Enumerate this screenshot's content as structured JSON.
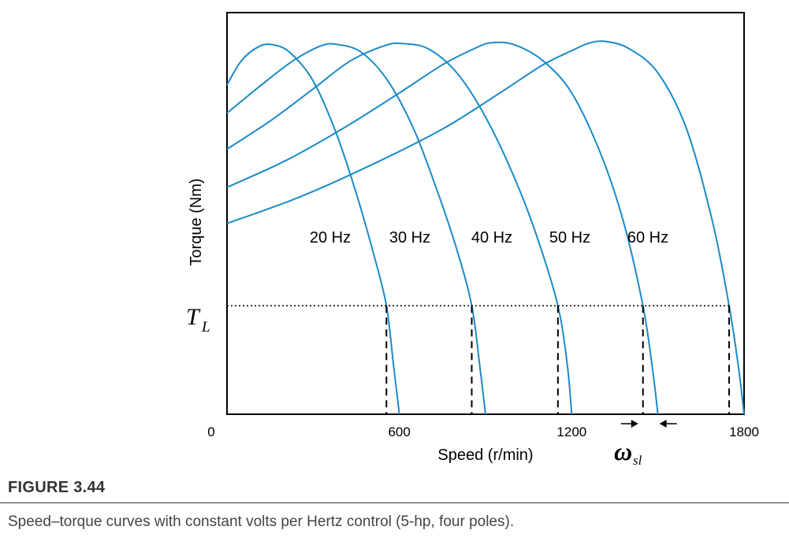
{
  "chart_data": {
    "type": "line",
    "title": "",
    "xlabel": "Speed (r/min)",
    "ylabel": "Torque (Nm)",
    "xlim": [
      0,
      1800
    ],
    "x_ticks": [
      "0",
      "600",
      "1200",
      "1800"
    ],
    "ylim": [
      0,
      100
    ],
    "grid": false,
    "legend": "none",
    "curve_color": "#1a8bc8",
    "load_torque": {
      "label_main": "T",
      "label_sub": "L",
      "value": 27
    },
    "slip_annotation": {
      "label_main": "ω",
      "label_sub": "sl",
      "between": [
        1440,
        1500
      ]
    },
    "series": [
      {
        "label": "20 Hz",
        "sync_speed": 600,
        "load_speed": 555,
        "points": [
          [
            0,
            82
          ],
          [
            50,
            88
          ],
          [
            110,
            91.5
          ],
          [
            160,
            92
          ],
          [
            220,
            90
          ],
          [
            300,
            83
          ],
          [
            380,
            70
          ],
          [
            450,
            55
          ],
          [
            510,
            40
          ],
          [
            555,
            27
          ],
          [
            580,
            12
          ],
          [
            600,
            0
          ]
        ]
      },
      {
        "label": "30 Hz",
        "sync_speed": 900,
        "load_speed": 852,
        "points": [
          [
            0,
            75
          ],
          [
            120,
            82
          ],
          [
            230,
            88
          ],
          [
            330,
            91.8
          ],
          [
            390,
            92
          ],
          [
            470,
            90
          ],
          [
            560,
            83
          ],
          [
            650,
            71
          ],
          [
            730,
            56
          ],
          [
            800,
            41
          ],
          [
            852,
            27
          ],
          [
            880,
            12
          ],
          [
            900,
            0
          ]
        ]
      },
      {
        "label": "40 Hz",
        "sync_speed": 1200,
        "load_speed": 1152,
        "points": [
          [
            0,
            66
          ],
          [
            150,
            73
          ],
          [
            300,
            81
          ],
          [
            430,
            88
          ],
          [
            550,
            91.8
          ],
          [
            610,
            92.3
          ],
          [
            700,
            91
          ],
          [
            800,
            85
          ],
          [
            900,
            74
          ],
          [
            1000,
            59
          ],
          [
            1080,
            44
          ],
          [
            1152,
            27
          ],
          [
            1185,
            12
          ],
          [
            1200,
            0
          ]
        ]
      },
      {
        "label": "50 Hz",
        "sync_speed": 1500,
        "load_speed": 1448,
        "points": [
          [
            0,
            56.5
          ],
          [
            200,
            63
          ],
          [
            400,
            71
          ],
          [
            600,
            80
          ],
          [
            750,
            87
          ],
          [
            860,
            91
          ],
          [
            920,
            92.5
          ],
          [
            1000,
            92
          ],
          [
            1100,
            88
          ],
          [
            1200,
            80
          ],
          [
            1300,
            65
          ],
          [
            1380,
            48
          ],
          [
            1448,
            27
          ],
          [
            1480,
            12
          ],
          [
            1500,
            0
          ]
        ]
      },
      {
        "label": "60 Hz",
        "sync_speed": 1800,
        "load_speed": 1748,
        "points": [
          [
            0,
            47.5
          ],
          [
            250,
            54
          ],
          [
            500,
            62
          ],
          [
            750,
            71
          ],
          [
            950,
            80
          ],
          [
            1100,
            87
          ],
          [
            1200,
            90.5
          ],
          [
            1260,
            92.4
          ],
          [
            1320,
            92.8
          ],
          [
            1400,
            91
          ],
          [
            1500,
            85
          ],
          [
            1600,
            71
          ],
          [
            1690,
            48
          ],
          [
            1748,
            27
          ],
          [
            1780,
            12
          ],
          [
            1800,
            0
          ]
        ]
      }
    ]
  },
  "figure": {
    "title": "FIGURE 3.44",
    "caption": "Speed–torque curves with constant volts per Hertz control (5-hp, four poles)."
  }
}
